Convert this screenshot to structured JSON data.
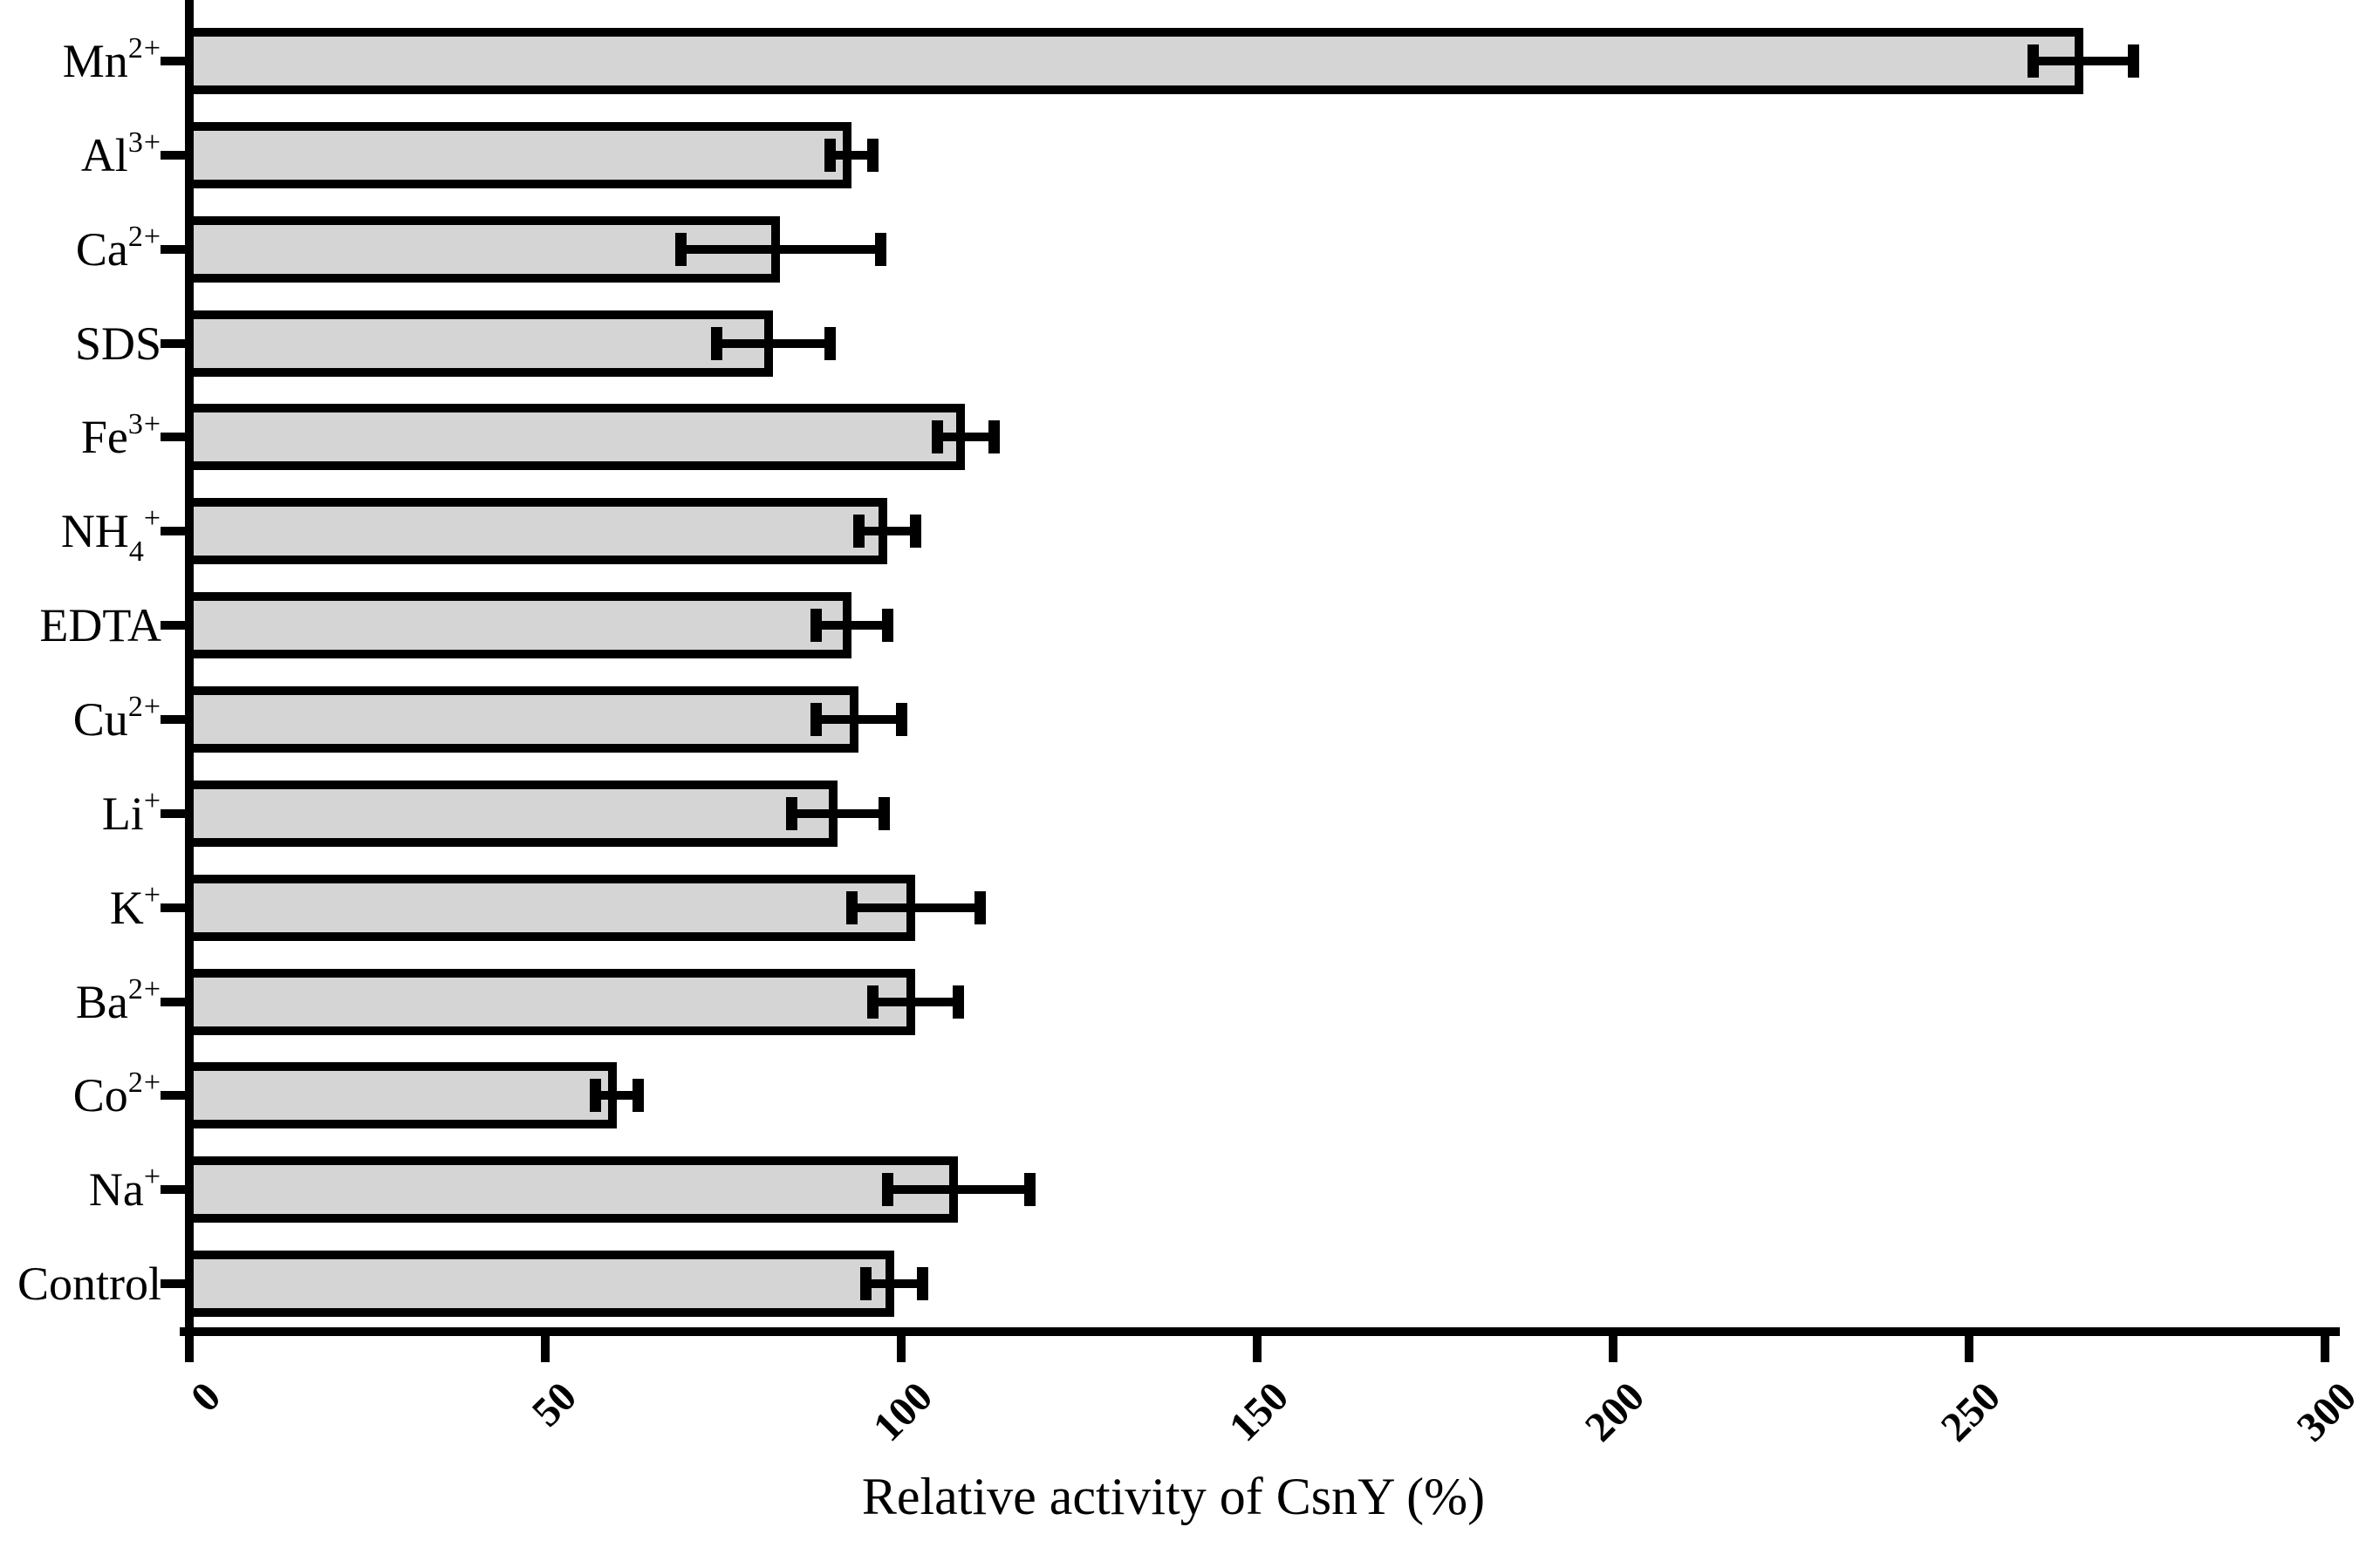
{
  "chart_data": {
    "type": "bar",
    "orientation": "horizontal",
    "title": "",
    "xlabel": "Relative activity of CsnY (%)",
    "ylabel": "",
    "xlim": [
      0,
      300
    ],
    "xticks": [
      0,
      50,
      100,
      150,
      200,
      250,
      300
    ],
    "grid": false,
    "legend_position": "none",
    "bar_fill_color": "#d5d5d5",
    "bar_border_color": "#000000",
    "axis_color": "#000000",
    "error_bar_style": "symmetric-with-caps",
    "categories": [
      "Mn²⁺",
      "Al³⁺",
      "Ca²⁺",
      "SDS",
      "Fe³⁺",
      "NH₄⁺",
      "EDTA",
      "Cu²⁺",
      "Li⁺",
      "K⁺",
      "Ba²⁺",
      "Co²⁺",
      "Na⁺",
      "Control"
    ],
    "categories_rich": [
      {
        "base": "Mn",
        "sup": "2+"
      },
      {
        "base": "Al",
        "sup": "3+"
      },
      {
        "base": "Ca",
        "sup": "2+"
      },
      {
        "base": "SDS"
      },
      {
        "base": "Fe",
        "sup": "3+"
      },
      {
        "base": "NH",
        "sub": "4",
        "sup": "+"
      },
      {
        "base": "EDTA"
      },
      {
        "base": "Cu",
        "sup": "2+"
      },
      {
        "base": "Li",
        "sup": "+"
      },
      {
        "base": "K",
        "sup": "+"
      },
      {
        "base": "Ba",
        "sup": "2+"
      },
      {
        "base": "Co",
        "sup": "2+"
      },
      {
        "base": "Na",
        "sup": "+"
      },
      {
        "base": "Control"
      }
    ],
    "values": [
      266,
      93,
      83,
      82,
      109,
      98,
      93,
      94,
      91,
      102,
      102,
      60,
      108,
      99
    ],
    "errors": [
      7,
      3,
      14,
      8,
      4,
      4,
      5,
      6,
      6.5,
      9,
      6,
      3,
      10,
      4
    ]
  }
}
